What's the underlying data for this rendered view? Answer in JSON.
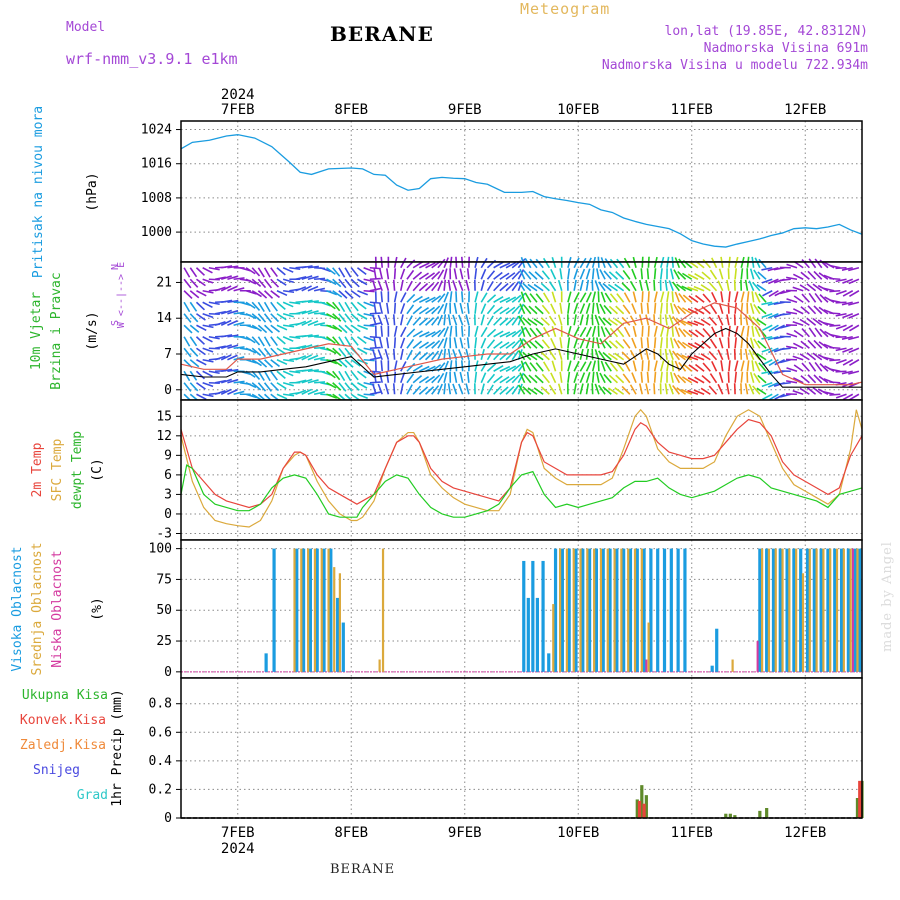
{
  "header": {
    "model_label": "Model",
    "model_name": "wrf-nmm_v3.9.1 e1km",
    "station": "BERANE",
    "meteogram": "Meteogram",
    "lonlat": "lon,lat (19.85E, 42.8312N)",
    "altitude": "Nadmorska Visina 691m",
    "model_altitude": "Nadmorska Visina u modelu 722.934m"
  },
  "footer": {
    "station": "BERANE",
    "signature": "made by Angel"
  },
  "colors": {
    "pressure": "#1a9ce0",
    "wind_speed": "#000000",
    "wind_gust": "#e0584a",
    "temp2m": "#e8453c",
    "sfc_temp": "#dba93c",
    "dewpt": "#22cc22",
    "high_cloud": "#1a9ce0",
    "mid_cloud": "#dba93c",
    "low_cloud": "#d43aa0",
    "total_precip": "#2db52d",
    "conv_precip": "#e8453c",
    "frozen_precip": "#ef8a3a",
    "snow": "#4a4ae0",
    "graupel": "#2ec8c8",
    "label_purple": "#a448d6"
  },
  "chart_data": [
    {
      "type": "line",
      "panel": "pressure",
      "ylabel_lines": [
        "Pritisak na nivou mora",
        "(hPa)"
      ],
      "yticks": [
        1000,
        1008,
        1016,
        1024
      ],
      "ylim": [
        993,
        1026
      ],
      "x_year": "2024",
      "x_tick_labels": [
        "7FEB",
        "8FEB",
        "9FEB",
        "10FEB",
        "11FEB",
        "12FEB"
      ],
      "x_tick_days": [
        1,
        2,
        3,
        4,
        5,
        6
      ],
      "xlim_days": [
        0.5,
        6.5
      ],
      "grid": true,
      "series": [
        {
          "x": [
            0.5,
            0.6,
            0.75,
            0.9,
            1.0,
            1.15,
            1.3,
            1.45,
            1.55,
            1.65,
            1.8,
            2.0,
            2.1,
            2.2,
            2.3,
            2.4,
            2.5,
            2.6,
            2.7,
            2.8,
            2.9,
            3.0,
            3.1,
            3.2,
            3.35,
            3.5,
            3.6,
            3.7,
            3.8,
            3.9,
            4.0,
            4.1,
            4.2,
            4.3,
            4.4,
            4.5,
            4.6,
            4.7,
            4.8,
            4.9,
            5.0,
            5.1,
            5.2,
            5.3,
            5.4,
            5.5,
            5.6,
            5.7,
            5.8,
            5.9,
            6.0,
            6.1,
            6.2,
            6.3,
            6.4,
            6.5
          ],
          "values": [
            1019.5,
            1021,
            1021.5,
            1022.5,
            1022.8,
            1022,
            1020,
            1016.5,
            1014,
            1013.5,
            1014.8,
            1015,
            1014.8,
            1013.5,
            1013.3,
            1011,
            1009.8,
            1010.2,
            1012.5,
            1012.8,
            1012.6,
            1012.5,
            1011.6,
            1011.2,
            1009.3,
            1009.3,
            1009.5,
            1008.3,
            1007.8,
            1007.4,
            1006.9,
            1006.5,
            1005.2,
            1004.6,
            1003.3,
            1002.5,
            1001.8,
            1001.3,
            1000.8,
            999.6,
            998,
            997.2,
            996.7,
            996.5,
            997.2,
            997.8,
            998.4,
            999.2,
            999.8,
            1000.8,
            1001,
            1000.8,
            1001.2,
            1001.8,
            1000.5,
            999.5
          ]
        }
      ]
    },
    {
      "type": "line",
      "panel": "wind",
      "ylabel_lines": [
        "10m Vjetar",
        "Brzina i Pravac",
        "(m/s)"
      ],
      "direction_key": [
        "N",
        "W <--|--> E",
        "S"
      ],
      "yticks": [
        0,
        7,
        14,
        21
      ],
      "ylim": [
        -2,
        25
      ],
      "xlim_days": [
        0.5,
        6.5
      ],
      "grid": true,
      "arrow_color_scale": [
        "#8b1fc8",
        "#3a4de0",
        "#1a9ce0",
        "#16c8c8",
        "#22cc22",
        "#c8e020",
        "#f0a020",
        "#e83030"
      ],
      "series": [
        {
          "name": "speed",
          "x": [
            0.5,
            0.7,
            0.9,
            1.0,
            1.2,
            1.4,
            1.6,
            1.8,
            2.0,
            2.2,
            2.4,
            2.6,
            2.8,
            3.0,
            3.2,
            3.4,
            3.6,
            3.8,
            4.0,
            4.2,
            4.4,
            4.6,
            4.7,
            4.8,
            4.9,
            5.0,
            5.1,
            5.2,
            5.3,
            5.4,
            5.5,
            5.6,
            5.7,
            5.8,
            5.9,
            6.0,
            6.2,
            6.4,
            6.5
          ],
          "values": [
            3,
            2.5,
            2.5,
            3.5,
            3.5,
            4,
            4.5,
            5.5,
            6.5,
            2.5,
            3,
            3.5,
            4,
            4.5,
            5,
            5.5,
            7,
            8,
            7,
            6,
            5,
            8,
            7,
            5,
            4,
            7,
            9,
            11,
            12,
            11,
            9,
            6,
            3,
            0.5,
            0.5,
            0.5,
            0.5,
            0.5,
            0.5
          ]
        },
        {
          "name": "gust",
          "x": [
            0.5,
            0.7,
            0.9,
            1.0,
            1.2,
            1.4,
            1.6,
            1.8,
            2.0,
            2.2,
            2.4,
            2.6,
            2.8,
            3.0,
            3.2,
            3.4,
            3.6,
            3.8,
            4.0,
            4.2,
            4.4,
            4.6,
            4.8,
            5.0,
            5.2,
            5.4,
            5.6,
            5.8,
            6.0,
            6.2,
            6.4,
            6.5
          ],
          "values": [
            5,
            4,
            4,
            6,
            6,
            7,
            8,
            9,
            8.5,
            3,
            4,
            5,
            6,
            6.5,
            7,
            7,
            10,
            12,
            10,
            9,
            13,
            14,
            12,
            15,
            17,
            16,
            12,
            3,
            1,
            1,
            1,
            1.5
          ]
        }
      ]
    },
    {
      "type": "line",
      "panel": "temperature",
      "ylabel_lines": [
        "2m Temp",
        "SFC Temp",
        "dewpt Temp",
        "(C)"
      ],
      "yticks": [
        -3,
        0,
        3,
        6,
        9,
        12,
        15
      ],
      "ylim": [
        -4,
        17.5
      ],
      "xlim_days": [
        0.5,
        6.5
      ],
      "grid": true,
      "series": [
        {
          "name": "2m Temp",
          "x": [
            0.5,
            0.6,
            0.7,
            0.8,
            0.9,
            1.0,
            1.1,
            1.2,
            1.3,
            1.4,
            1.5,
            1.55,
            1.6,
            1.7,
            1.8,
            1.9,
            2.0,
            2.05,
            2.1,
            2.2,
            2.3,
            2.4,
            2.5,
            2.55,
            2.6,
            2.7,
            2.8,
            2.9,
            3.0,
            3.1,
            3.2,
            3.3,
            3.4,
            3.5,
            3.55,
            3.6,
            3.7,
            3.8,
            3.9,
            4.0,
            4.1,
            4.2,
            4.3,
            4.4,
            4.5,
            4.55,
            4.6,
            4.7,
            4.8,
            4.9,
            5.0,
            5.1,
            5.2,
            5.3,
            5.4,
            5.5,
            5.6,
            5.7,
            5.8,
            5.9,
            6.0,
            6.1,
            6.2,
            6.3,
            6.4,
            6.5
          ],
          "values": [
            13,
            7,
            5,
            3,
            2,
            1.5,
            1,
            1.5,
            3,
            7,
            9.5,
            9.5,
            9,
            6,
            4,
            3,
            2,
            1.5,
            2,
            3,
            7,
            11,
            12,
            12,
            11,
            7,
            5,
            4,
            3.5,
            3,
            2.5,
            2,
            4,
            11,
            12.5,
            12,
            8,
            7,
            6,
            6,
            6,
            6,
            6.5,
            9,
            13,
            14,
            13.5,
            11,
            9.5,
            9,
            8.5,
            8.5,
            9,
            11,
            13,
            14.5,
            14,
            12,
            8,
            6,
            5,
            4,
            3,
            4,
            9,
            12
          ]
        },
        {
          "name": "SFC Temp",
          "x": [
            0.5,
            0.6,
            0.7,
            0.8,
            0.9,
            1.0,
            1.1,
            1.2,
            1.3,
            1.4,
            1.5,
            1.55,
            1.6,
            1.7,
            1.8,
            1.9,
            2.0,
            2.05,
            2.1,
            2.2,
            2.3,
            2.4,
            2.5,
            2.55,
            2.6,
            2.7,
            2.8,
            2.9,
            3.0,
            3.1,
            3.2,
            3.3,
            3.4,
            3.5,
            3.55,
            3.6,
            3.7,
            3.8,
            3.9,
            4.0,
            4.1,
            4.2,
            4.3,
            4.4,
            4.5,
            4.55,
            4.6,
            4.7,
            4.8,
            4.9,
            5.0,
            5.1,
            5.2,
            5.3,
            5.4,
            5.5,
            5.6,
            5.7,
            5.8,
            5.9,
            6.0,
            6.1,
            6.2,
            6.3,
            6.4,
            6.45,
            6.5
          ],
          "values": [
            12,
            5,
            1,
            -1,
            -1.5,
            -1.8,
            -2,
            -1,
            2,
            7,
            9,
            9.5,
            9,
            5,
            2,
            0,
            -1,
            -1,
            -0.5,
            2,
            7,
            11,
            12.5,
            12.5,
            11,
            6,
            4,
            2.5,
            1.5,
            1,
            0.5,
            0.5,
            3,
            11,
            13,
            12.5,
            7,
            5.5,
            4.5,
            4.5,
            4.5,
            4.5,
            5.5,
            10,
            15,
            16,
            15,
            10,
            8,
            7,
            7,
            7,
            8,
            12,
            15,
            16,
            15,
            11,
            7,
            4.5,
            3.5,
            2.5,
            1.5,
            3,
            10,
            16,
            13
          ]
        },
        {
          "name": "dewpt Temp",
          "x": [
            0.5,
            0.55,
            0.6,
            0.7,
            0.8,
            0.9,
            1.0,
            1.1,
            1.2,
            1.3,
            1.4,
            1.5,
            1.6,
            1.7,
            1.8,
            1.9,
            2.0,
            2.05,
            2.1,
            2.2,
            2.3,
            2.4,
            2.5,
            2.6,
            2.7,
            2.8,
            2.9,
            3.0,
            3.1,
            3.2,
            3.3,
            3.4,
            3.5,
            3.6,
            3.7,
            3.8,
            3.9,
            4.0,
            4.1,
            4.2,
            4.3,
            4.4,
            4.5,
            4.6,
            4.7,
            4.8,
            4.9,
            5.0,
            5.1,
            5.2,
            5.3,
            5.4,
            5.5,
            5.6,
            5.7,
            5.8,
            5.9,
            6.0,
            6.1,
            6.2,
            6.3,
            6.4,
            6.5
          ],
          "values": [
            3,
            7.5,
            7,
            3,
            1.5,
            1,
            0.5,
            0.5,
            1.5,
            4,
            5.5,
            6,
            5.5,
            3,
            0,
            -0.5,
            -0.5,
            -0.5,
            1,
            3,
            5,
            6,
            5.5,
            3,
            1,
            0,
            -0.5,
            -0.5,
            0,
            0.5,
            1.5,
            4,
            6,
            6.5,
            3,
            1,
            1.5,
            1,
            1.5,
            2,
            2.5,
            4,
            5,
            5,
            5.5,
            4,
            3,
            2.5,
            3,
            3.5,
            4.5,
            5.5,
            6,
            5.5,
            4,
            3.5,
            3,
            2.5,
            2,
            1,
            3,
            3.5,
            4
          ]
        }
      ]
    },
    {
      "type": "bar",
      "panel": "cloud",
      "ylabel_lines": [
        "Visoka Oblacnost",
        "Srednja Oblacnost",
        "Niska Oblacnost",
        "(%)"
      ],
      "yticks": [
        0,
        25,
        50,
        75,
        100
      ],
      "ylim": [
        -5,
        107
      ],
      "xlim_days": [
        0.5,
        6.5
      ],
      "grid": true,
      "series": [
        {
          "name": "Visoka Oblacnost",
          "x": [
            1.25,
            1.32,
            1.52,
            1.58,
            1.64,
            1.7,
            1.76,
            1.82,
            1.88,
            1.93,
            3.52,
            3.56,
            3.6,
            3.64,
            3.69,
            3.74,
            3.8,
            3.86,
            3.92,
            3.98,
            4.04,
            4.1,
            4.16,
            4.22,
            4.28,
            4.34,
            4.4,
            4.46,
            4.52,
            4.58,
            4.64,
            4.7,
            4.76,
            4.82,
            4.88,
            4.94,
            5.18,
            5.22,
            5.6,
            5.66,
            5.72,
            5.78,
            5.84,
            5.9,
            5.96,
            6.02,
            6.08,
            6.14,
            6.2,
            6.26,
            6.32,
            6.38,
            6.44,
            6.48
          ],
          "values": [
            15,
            100,
            100,
            100,
            100,
            100,
            100,
            100,
            60,
            40,
            90,
            60,
            90,
            60,
            90,
            15,
            100,
            100,
            100,
            100,
            100,
            100,
            100,
            100,
            100,
            100,
            100,
            100,
            100,
            100,
            100,
            100,
            100,
            100,
            100,
            100,
            5,
            35,
            100,
            100,
            100,
            100,
            100,
            100,
            100,
            100,
            100,
            100,
            100,
            100,
            100,
            100,
            100,
            100
          ]
        },
        {
          "name": "Srednja Oblacnost",
          "x": [
            1.5,
            1.56,
            1.62,
            1.68,
            1.74,
            1.8,
            1.85,
            1.9,
            2.25,
            2.28,
            3.78,
            3.84,
            3.9,
            3.96,
            4.02,
            4.08,
            4.14,
            4.2,
            4.26,
            4.32,
            4.38,
            4.44,
            4.5,
            4.56,
            4.62,
            5.36,
            5.62,
            5.68,
            5.74,
            5.8,
            5.86,
            5.92,
            5.98,
            6.04,
            6.1,
            6.16,
            6.22,
            6.28,
            6.34,
            6.4,
            6.46
          ],
          "values": [
            100,
            100,
            100,
            100,
            100,
            100,
            85,
            80,
            10,
            100,
            55,
            100,
            100,
            100,
            100,
            100,
            100,
            100,
            100,
            100,
            100,
            100,
            100,
            100,
            40,
            10,
            100,
            100,
            100,
            100,
            100,
            100,
            80,
            100,
            100,
            100,
            100,
            100,
            100,
            100,
            100
          ]
        },
        {
          "name": "Niska Oblacnost",
          "x": [
            4.6,
            5.58,
            6.42
          ],
          "values": [
            10,
            25,
            100
          ]
        }
      ]
    },
    {
      "type": "bar",
      "panel": "precip",
      "ylabel_lines": [
        "1hr Precip (mm)"
      ],
      "legend": [
        "Ukupna Kisa",
        "Konvek.Kisa",
        "Zaledj.Kisa",
        "Snijeg",
        "Grad"
      ],
      "yticks": [
        0,
        0.2,
        0.4,
        0.6,
        0.8
      ],
      "ylim": [
        0,
        0.98
      ],
      "xlim_days": [
        0.5,
        6.5
      ],
      "grid": true,
      "series": [
        {
          "name": "Ukupna Kisa",
          "x": [
            4.52,
            4.56,
            4.6,
            5.3,
            5.34,
            5.38,
            5.6,
            5.66,
            6.46,
            6.5
          ],
          "values": [
            0.13,
            0.23,
            0.16,
            0.03,
            0.03,
            0.02,
            0.05,
            0.07,
            0.14,
            0.26
          ]
        },
        {
          "name": "Konvek.Kisa",
          "x": [
            4.54,
            4.58,
            6.48
          ],
          "values": [
            0.12,
            0.1,
            0.26
          ]
        }
      ]
    }
  ]
}
